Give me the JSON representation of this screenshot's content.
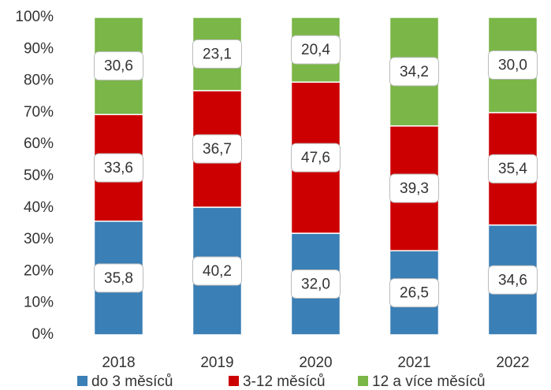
{
  "chart_data": {
    "type": "stacked_bar",
    "categories": [
      "2018",
      "2019",
      "2020",
      "2021",
      "2022"
    ],
    "series": [
      {
        "name": "do 3 měsíců",
        "color": "#3a7fb5",
        "values": [
          35.8,
          40.2,
          32.0,
          26.5,
          34.6
        ],
        "value_labels": [
          "35,8",
          "40,2",
          "32,0",
          "26,5",
          "34,6"
        ]
      },
      {
        "name": "3-12 měsíců",
        "color": "#cc0000",
        "values": [
          33.6,
          36.7,
          47.6,
          39.3,
          35.4
        ],
        "value_labels": [
          "33,6",
          "36,7",
          "47,6",
          "39,3",
          "35,4"
        ]
      },
      {
        "name": "12 a více měsíců",
        "color": "#7ab648",
        "values": [
          30.6,
          23.1,
          20.4,
          34.2,
          30.0
        ],
        "value_labels": [
          "30,6",
          "23,1",
          "20,4",
          "34,2",
          "30,0"
        ]
      }
    ],
    "ylim": [
      0,
      100
    ],
    "yticks": [
      {
        "value": 0,
        "label": "0%"
      },
      {
        "value": 10,
        "label": "10%"
      },
      {
        "value": 20,
        "label": "20%"
      },
      {
        "value": 30,
        "label": "30%"
      },
      {
        "value": 40,
        "label": "40%"
      },
      {
        "value": 50,
        "label": "50%"
      },
      {
        "value": 60,
        "label": "60%"
      },
      {
        "value": 70,
        "label": "70%"
      },
      {
        "value": 80,
        "label": "80%"
      },
      {
        "value": 90,
        "label": "90%"
      },
      {
        "value": 100,
        "label": "100%"
      }
    ],
    "legend": "bottom"
  }
}
